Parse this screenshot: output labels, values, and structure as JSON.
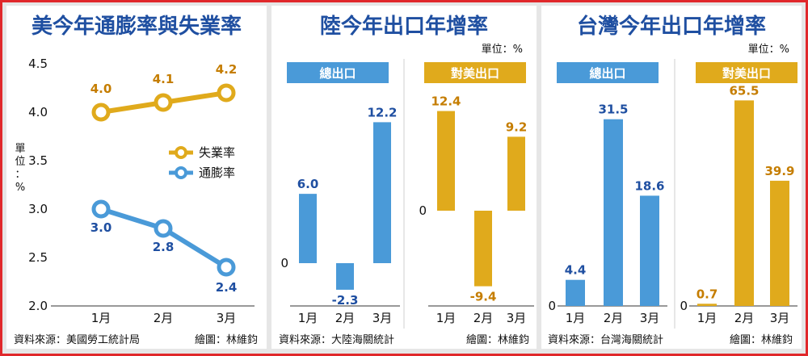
{
  "colors": {
    "border": "#e0282b",
    "title": "#1f4fa1",
    "blue": "#4a9ad8",
    "gold": "#e0aa1c",
    "blue_text": "#1f4fa1",
    "gold_text": "#c57d00",
    "panel_bg": "#ffffff",
    "frame_bg": "#e6e6e6"
  },
  "panels": {
    "us": {
      "title": "美今年通膨率與失業率",
      "ylabel": "單\n位\n：\n%",
      "source": "資料來源：美國勞工統計局",
      "credit": "繪圖：林維鈞"
    },
    "china": {
      "title": "陸今年出口年增率",
      "unit": "單位：%",
      "source": "資料來源：大陸海關統計",
      "credit": "繪圖：林維鈞"
    },
    "taiwan": {
      "title": "台灣今年出口年增率",
      "unit": "單位：%",
      "source": "資料來源：台灣海關統計",
      "credit": "繪圖：林維鈞"
    }
  },
  "chart_data": [
    {
      "id": "us",
      "type": "line",
      "title": "美今年通膨率與失業率",
      "ylabel": "單位：%",
      "categories": [
        "1月",
        "2月",
        "3月"
      ],
      "ylim": [
        2.0,
        4.5
      ],
      "yticks": [
        "2.0",
        "2.5",
        "3.0",
        "3.5",
        "4.0",
        "4.5"
      ],
      "legend_position": "right-middle",
      "series": [
        {
          "name": "失業率",
          "values": [
            4.0,
            4.1,
            4.2
          ],
          "labels": [
            "4.0",
            "4.1",
            "4.2"
          ],
          "color": "#e0aa1c"
        },
        {
          "name": "通膨率",
          "values": [
            3.0,
            2.8,
            2.4
          ],
          "labels": [
            "3.0",
            "2.8",
            "2.4"
          ],
          "color": "#4a9ad8"
        }
      ]
    },
    {
      "id": "china_total",
      "type": "bar",
      "title": "總出口",
      "categories": [
        "1月",
        "2月",
        "3月"
      ],
      "values": [
        6.0,
        -2.3,
        12.2
      ],
      "labels": [
        "6.0",
        "-2.3",
        "12.2"
      ],
      "color": "#4a9ad8",
      "zero_label": "0"
    },
    {
      "id": "china_us",
      "type": "bar",
      "title": "對美出口",
      "categories": [
        "1月",
        "2月",
        "3月"
      ],
      "values": [
        12.4,
        -9.4,
        9.2
      ],
      "labels": [
        "12.4",
        "-9.4",
        "9.2"
      ],
      "color": "#e0aa1c",
      "zero_label": "0"
    },
    {
      "id": "taiwan_total",
      "type": "bar",
      "title": "總出口",
      "categories": [
        "1月",
        "2月",
        "3月"
      ],
      "values": [
        4.4,
        31.5,
        18.6
      ],
      "labels": [
        "4.4",
        "31.5",
        "18.6"
      ],
      "color": "#4a9ad8",
      "zero_label": "0"
    },
    {
      "id": "taiwan_us",
      "type": "bar",
      "title": "對美出口",
      "categories": [
        "1月",
        "2月",
        "3月"
      ],
      "values": [
        0.7,
        65.5,
        39.9
      ],
      "labels": [
        "0.7",
        "65.5",
        "39.9"
      ],
      "color": "#e0aa1c",
      "zero_label": "0"
    }
  ]
}
